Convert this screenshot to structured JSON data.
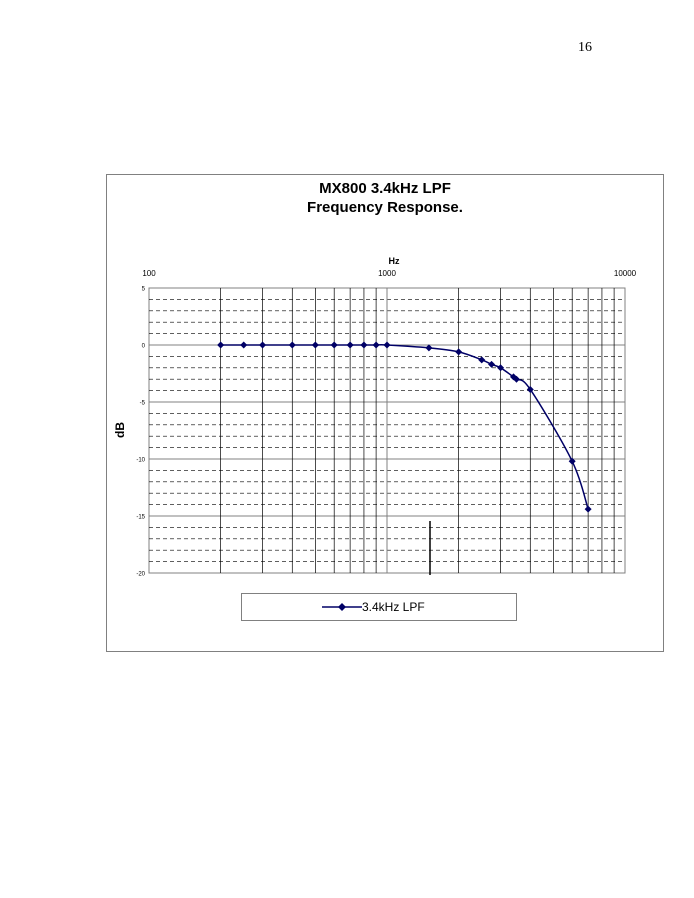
{
  "page": {
    "number": "16"
  },
  "chart_data": {
    "type": "line",
    "title": "MX800 3.4kHz LPF",
    "subtitle": "Frequency Response.",
    "xlabel": "Hz",
    "ylabel": "dB",
    "x_scale": "log",
    "x_axis_position": "top",
    "xlim": [
      100,
      10000
    ],
    "ylim": [
      -20,
      5
    ],
    "x_ticks": [
      "100",
      "1000",
      "10000"
    ],
    "y_ticks": [
      "5",
      "0",
      "-5",
      "-10",
      "-15",
      "-20"
    ],
    "grid": true,
    "legend": "bottom",
    "colors": {
      "series": "#000066",
      "grid": "#000000",
      "plot_bg": "#ffffff"
    },
    "series": [
      {
        "name": "3.4kHz LPF",
        "x": [
          200,
          250,
          300,
          400,
          500,
          600,
          700,
          800,
          900,
          1000,
          1500,
          2000,
          2500,
          2750,
          3000,
          3400,
          3500,
          4000,
          6000,
          7000
        ],
        "y": [
          0,
          0,
          0,
          0,
          0,
          0,
          0,
          0,
          0,
          0,
          -0.25,
          -0.6,
          -1.3,
          -1.7,
          -2.0,
          -2.8,
          -3.0,
          -3.9,
          -10.2,
          -14.4
        ]
      }
    ]
  }
}
